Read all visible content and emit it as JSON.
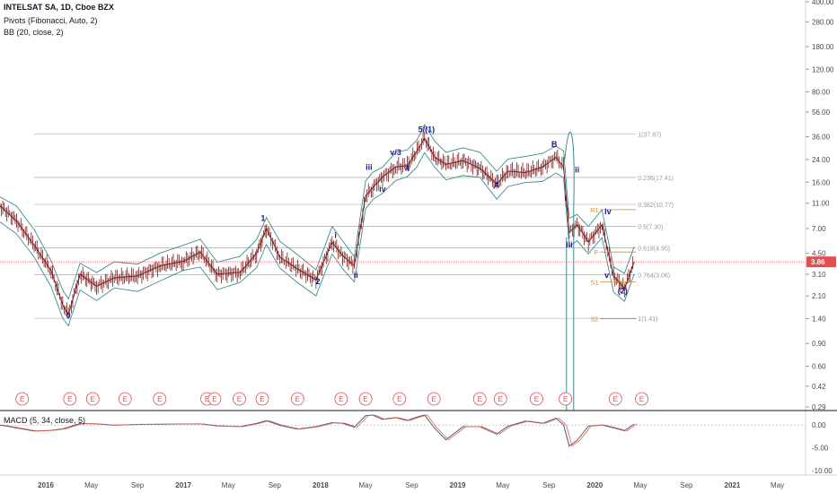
{
  "legend": {
    "title": "INTELSAT SA, 1D, Cboe BZX",
    "pivots": "Pivots (Fibonacci, Auto, 2)",
    "bb": "BB (20, close, 2)",
    "macd": "MACD (5, 34, close, 5)"
  },
  "colors": {
    "candles": "#7a1e1e",
    "bb": "#3d8a94",
    "fib": "#9a9a9a",
    "wave_labels": "#1a1a8f",
    "pivot": "#d48a2a",
    "price_line": "#e05050",
    "macd_line": "#5a5a5a",
    "macd_signal": "#e06060",
    "earnings": "#e05050"
  },
  "chart_data": {
    "type": "line",
    "price_axis_ticks": [
      "400.00",
      "280.00",
      "180.00",
      "120.00",
      "80.00",
      "56.00",
      "36.00",
      "24.00",
      "16.00",
      "11.00",
      "7.00",
      "4.50",
      "3.10",
      "2.10",
      "1.40",
      "0.90",
      "0.60",
      "0.42",
      "0.29"
    ],
    "current_price": "3.86",
    "macd_axis_ticks": [
      "0.00",
      "-5.00",
      "-10.00"
    ],
    "time_axis": [
      "2016",
      "May",
      "Sep",
      "2017",
      "May",
      "Sep",
      "2018",
      "May",
      "Sep",
      "2019",
      "May",
      "Sep",
      "2020",
      "May",
      "Sep",
      "2021",
      "May"
    ],
    "fib_levels": [
      {
        "label": "1(37.87)",
        "value": 37.87
      },
      {
        "label": "0.236(17.41)",
        "value": 17.41
      },
      {
        "label": "0.382(10.77)",
        "value": 10.77
      },
      {
        "label": "0.5(7.30)",
        "value": 7.3
      },
      {
        "label": "0.618(4.95)",
        "value": 4.95
      },
      {
        "label": "0.764(3.06)",
        "value": 3.06
      },
      {
        "label": "1(1.41)",
        "value": 1.41
      }
    ],
    "wave_labels": [
      {
        "text": "0",
        "date": "2016-03-01",
        "price": 1.41
      },
      {
        "text": "1",
        "date": "2017-08-01",
        "price": 8.0
      },
      {
        "text": "2",
        "date": "2017-12-25",
        "price": 2.6
      },
      {
        "text": "i",
        "date": "2018-02-10",
        "price": 5.9
      },
      {
        "text": "ii",
        "date": "2018-04-05",
        "price": 2.9
      },
      {
        "text": "iii",
        "date": "2018-05-10",
        "price": 20
      },
      {
        "text": "iv",
        "date": "2018-06-15",
        "price": 13.5
      },
      {
        "text": "v/3",
        "date": "2018-07-20",
        "price": 26
      },
      {
        "text": "4",
        "date": "2018-08-20",
        "price": 19.5
      },
      {
        "text": "5/(1)",
        "date": "2018-10-10",
        "price": 39
      },
      {
        "text": "A",
        "date": "2019-04-15",
        "price": 14.5
      },
      {
        "text": "B",
        "date": "2019-09-15",
        "price": 30
      },
      {
        "text": "i",
        "date": "2019-10-15",
        "price": 11.5
      },
      {
        "text": "ii",
        "date": "2019-11-15",
        "price": 19
      },
      {
        "text": "iii",
        "date": "2019-10-25",
        "price": 5.0
      },
      {
        "text": "iv",
        "date": "2020-02-05",
        "price": 9.0
      },
      {
        "text": "v",
        "date": "2020-02-02",
        "price": 2.9
      },
      {
        "text": "(2)",
        "date": "2020-03-15",
        "price": 2.2
      }
    ],
    "pivot_labels": [
      {
        "text": "R1",
        "price": 9.8
      },
      {
        "text": "P",
        "price": 4.6
      },
      {
        "text": "S1",
        "price": 2.7
      },
      {
        "text": "S2",
        "price": 1.4
      }
    ],
    "price_series": {
      "name": "",
      "points": [
        {
          "date": "2015-09-01",
          "price": 10.5
        },
        {
          "date": "2015-10-15",
          "price": 8.0
        },
        {
          "date": "2015-12-01",
          "price": 5.2
        },
        {
          "date": "2016-01-15",
          "price": 3.3
        },
        {
          "date": "2016-02-15",
          "price": 1.8
        },
        {
          "date": "2016-03-01",
          "price": 1.5
        },
        {
          "date": "2016-04-01",
          "price": 3.1
        },
        {
          "date": "2016-05-15",
          "price": 2.5
        },
        {
          "date": "2016-07-01",
          "price": 2.9
        },
        {
          "date": "2016-09-01",
          "price": 3.0
        },
        {
          "date": "2016-11-01",
          "price": 3.6
        },
        {
          "date": "2017-01-01",
          "price": 3.9
        },
        {
          "date": "2017-02-15",
          "price": 4.6
        },
        {
          "date": "2017-04-01",
          "price": 3.1
        },
        {
          "date": "2017-06-01",
          "price": 3.2
        },
        {
          "date": "2017-07-15",
          "price": 4.5
        },
        {
          "date": "2017-08-10",
          "price": 7.0
        },
        {
          "date": "2017-09-15",
          "price": 4.2
        },
        {
          "date": "2017-11-01",
          "price": 3.4
        },
        {
          "date": "2017-12-20",
          "price": 2.8
        },
        {
          "date": "2018-02-01",
          "price": 5.5
        },
        {
          "date": "2018-03-01",
          "price": 4.3
        },
        {
          "date": "2018-04-01",
          "price": 3.6
        },
        {
          "date": "2018-05-01",
          "price": 12.5
        },
        {
          "date": "2018-05-20",
          "price": 14.5
        },
        {
          "date": "2018-06-15",
          "price": 17.5
        },
        {
          "date": "2018-07-20",
          "price": 21.0
        },
        {
          "date": "2018-08-20",
          "price": 21.5
        },
        {
          "date": "2018-09-15",
          "price": 28.0
        },
        {
          "date": "2018-10-05",
          "price": 35.0
        },
        {
          "date": "2018-11-01",
          "price": 25.0
        },
        {
          "date": "2018-12-01",
          "price": 22.0
        },
        {
          "date": "2019-01-15",
          "price": 23.5
        },
        {
          "date": "2019-03-01",
          "price": 20.5
        },
        {
          "date": "2019-04-15",
          "price": 15.5
        },
        {
          "date": "2019-05-15",
          "price": 19.5
        },
        {
          "date": "2019-07-01",
          "price": 19.0
        },
        {
          "date": "2019-08-15",
          "price": 21.0
        },
        {
          "date": "2019-09-20",
          "price": 25.0
        },
        {
          "date": "2019-10-10",
          "price": 21.0
        },
        {
          "date": "2019-10-25",
          "price": 6.5
        },
        {
          "date": "2019-11-15",
          "price": 7.5
        },
        {
          "date": "2019-12-15",
          "price": 5.5
        },
        {
          "date": "2020-01-20",
          "price": 7.5
        },
        {
          "date": "2020-02-20",
          "price": 3.0
        },
        {
          "date": "2020-03-20",
          "price": 2.4
        },
        {
          "date": "2020-04-15",
          "price": 3.86
        }
      ]
    },
    "earnings_markers": [
      "2015-10-30",
      "2016-03-05",
      "2016-05-05",
      "2016-07-30",
      "2016-10-30",
      "2017-03-05",
      "2017-03-25",
      "2017-05-30",
      "2017-07-30",
      "2017-11-01",
      "2018-02-25",
      "2018-05-01",
      "2018-07-30",
      "2018-10-30",
      "2019-03-01",
      "2019-04-25",
      "2019-07-30",
      "2019-10-15",
      "2020-02-25",
      "2020-05-05"
    ]
  }
}
